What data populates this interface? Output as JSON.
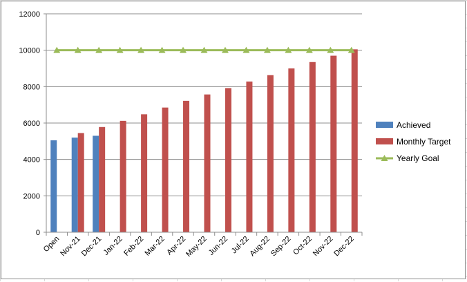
{
  "chart_data": {
    "type": "bar",
    "categories": [
      "Open",
      "Nov-21",
      "Dec-21",
      "Jan-22",
      "Feb-22",
      "Mar-22",
      "Apr-22",
      "May-22",
      "Jun-22",
      "Jul-22",
      "Aug-22",
      "Sep-22",
      "Oct-22",
      "Nov-22",
      "Dec-22"
    ],
    "y_ticks": [
      "0",
      "2000",
      "4000",
      "6000",
      "8000",
      "10000",
      "12000"
    ],
    "ylim": [
      0,
      12000
    ],
    "grid": true,
    "legend_position": "right",
    "series": [
      {
        "name": "Achieved",
        "kind": "bar",
        "color": "#4f81bd",
        "values": [
          5050,
          5200,
          5300,
          null,
          null,
          null,
          null,
          null,
          null,
          null,
          null,
          null,
          null,
          null,
          null
        ]
      },
      {
        "name": "Monthly Target",
        "kind": "bar",
        "color": "#c0504d",
        "values": [
          null,
          5450,
          5780,
          6120,
          6480,
          6850,
          7220,
          7570,
          7920,
          8280,
          8630,
          9000,
          9350,
          9700,
          10050
        ]
      },
      {
        "name": "Yearly Goal",
        "kind": "line",
        "marker": "triangle",
        "color": "#9bbb59",
        "values": [
          10000,
          10000,
          10000,
          10000,
          10000,
          10000,
          10000,
          10000,
          10000,
          10000,
          10000,
          10000,
          10000,
          10000,
          10000
        ]
      }
    ]
  }
}
